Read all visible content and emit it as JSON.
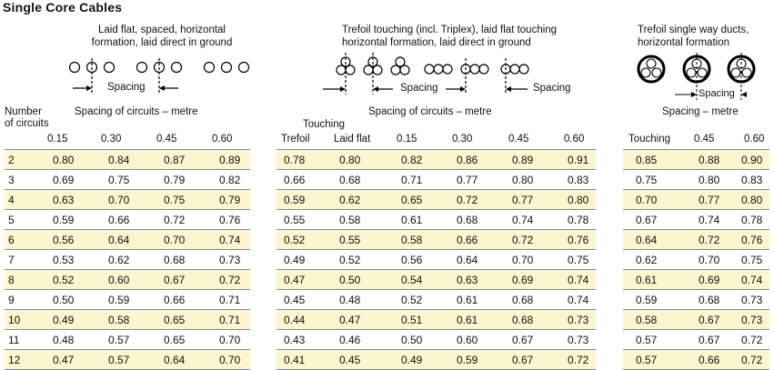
{
  "title": "Single Core Cables",
  "group1": {
    "caption": [
      "Laid flat, spaced, horizontal",
      "formation, laid direct in ground"
    ],
    "diagram_label": "Spacing",
    "heading": "Spacing of circuits – metre",
    "row_header": [
      "Number",
      "of circuits"
    ],
    "columns": [
      "0.15",
      "0.30",
      "0.45",
      "0.60"
    ]
  },
  "group2": {
    "caption": [
      "Trefoil touching (incl. Triplex), laid flat touching",
      "horizontal formation, laid direct in ground"
    ],
    "diagram_labels": [
      "Spacing",
      "Spacing"
    ],
    "heading": "Spacing of circuits – metre",
    "touching_label": "Touching",
    "columns": [
      "Trefoil",
      "Laid flat",
      "0.15",
      "0.30",
      "0.45",
      "0.60"
    ]
  },
  "group3": {
    "caption": [
      "Trefoil single way ducts,",
      "horizontal formation"
    ],
    "diagram_label": "Spacing",
    "heading": "Spacing – metre",
    "columns": [
      "Touching",
      "0.45",
      "0.60"
    ]
  },
  "rows": [
    {
      "n": "2",
      "g1": [
        "0.80",
        "0.84",
        "0.87",
        "0.89"
      ],
      "g2": [
        "0.78",
        "0.80",
        "0.82",
        "0.86",
        "0.89",
        "0.91"
      ],
      "g3": [
        "0.85",
        "0.88",
        "0.90"
      ]
    },
    {
      "n": "3",
      "g1": [
        "0.69",
        "0.75",
        "0.79",
        "0.82"
      ],
      "g2": [
        "0.66",
        "0.68",
        "0.71",
        "0.77",
        "0.80",
        "0.83"
      ],
      "g3": [
        "0.75",
        "0.80",
        "0.83"
      ]
    },
    {
      "n": "4",
      "g1": [
        "0.63",
        "0.70",
        "0.75",
        "0.79"
      ],
      "g2": [
        "0.59",
        "0.62",
        "0.65",
        "0.72",
        "0.77",
        "0.80"
      ],
      "g3": [
        "0.70",
        "0.77",
        "0.80"
      ]
    },
    {
      "n": "5",
      "g1": [
        "0.59",
        "0.66",
        "0.72",
        "0.76"
      ],
      "g2": [
        "0.55",
        "0.58",
        "0.61",
        "0.68",
        "0.74",
        "0.78"
      ],
      "g3": [
        "0.67",
        "0.74",
        "0.78"
      ]
    },
    {
      "n": "6",
      "g1": [
        "0.56",
        "0.64",
        "0.70",
        "0.74"
      ],
      "g2": [
        "0.52",
        "0.55",
        "0.58",
        "0.66",
        "0.72",
        "0.76"
      ],
      "g3": [
        "0.64",
        "0.72",
        "0.76"
      ]
    },
    {
      "n": "7",
      "g1": [
        "0.53",
        "0.62",
        "0.68",
        "0.73"
      ],
      "g2": [
        "0.49",
        "0.52",
        "0.56",
        "0.64",
        "0.70",
        "0.75"
      ],
      "g3": [
        "0.62",
        "0.70",
        "0.75"
      ]
    },
    {
      "n": "8",
      "g1": [
        "0.52",
        "0.60",
        "0.67",
        "0.72"
      ],
      "g2": [
        "0.47",
        "0.50",
        "0.54",
        "0.63",
        "0.69",
        "0.74"
      ],
      "g3": [
        "0.61",
        "0.69",
        "0.74"
      ]
    },
    {
      "n": "9",
      "g1": [
        "0.50",
        "0.59",
        "0.66",
        "0.71"
      ],
      "g2": [
        "0.45",
        "0.48",
        "0.52",
        "0.61",
        "0.68",
        "0.74"
      ],
      "g3": [
        "0.59",
        "0.68",
        "0.73"
      ]
    },
    {
      "n": "10",
      "g1": [
        "0.49",
        "0.58",
        "0.65",
        "0.71"
      ],
      "g2": [
        "0.44",
        "0.47",
        "0.51",
        "0.61",
        "0.68",
        "0.73"
      ],
      "g3": [
        "0.58",
        "0.67",
        "0.73"
      ]
    },
    {
      "n": "11",
      "g1": [
        "0.48",
        "0.57",
        "0.65",
        "0.70"
      ],
      "g2": [
        "0.43",
        "0.46",
        "0.50",
        "0.60",
        "0.67",
        "0.73"
      ],
      "g3": [
        "0.57",
        "0.67",
        "0.72"
      ]
    },
    {
      "n": "12",
      "g1": [
        "0.47",
        "0.57",
        "0.64",
        "0.70"
      ],
      "g2": [
        "0.41",
        "0.45",
        "0.49",
        "0.59",
        "0.67",
        "0.72"
      ],
      "g3": [
        "0.57",
        "0.66",
        "0.72"
      ]
    }
  ]
}
